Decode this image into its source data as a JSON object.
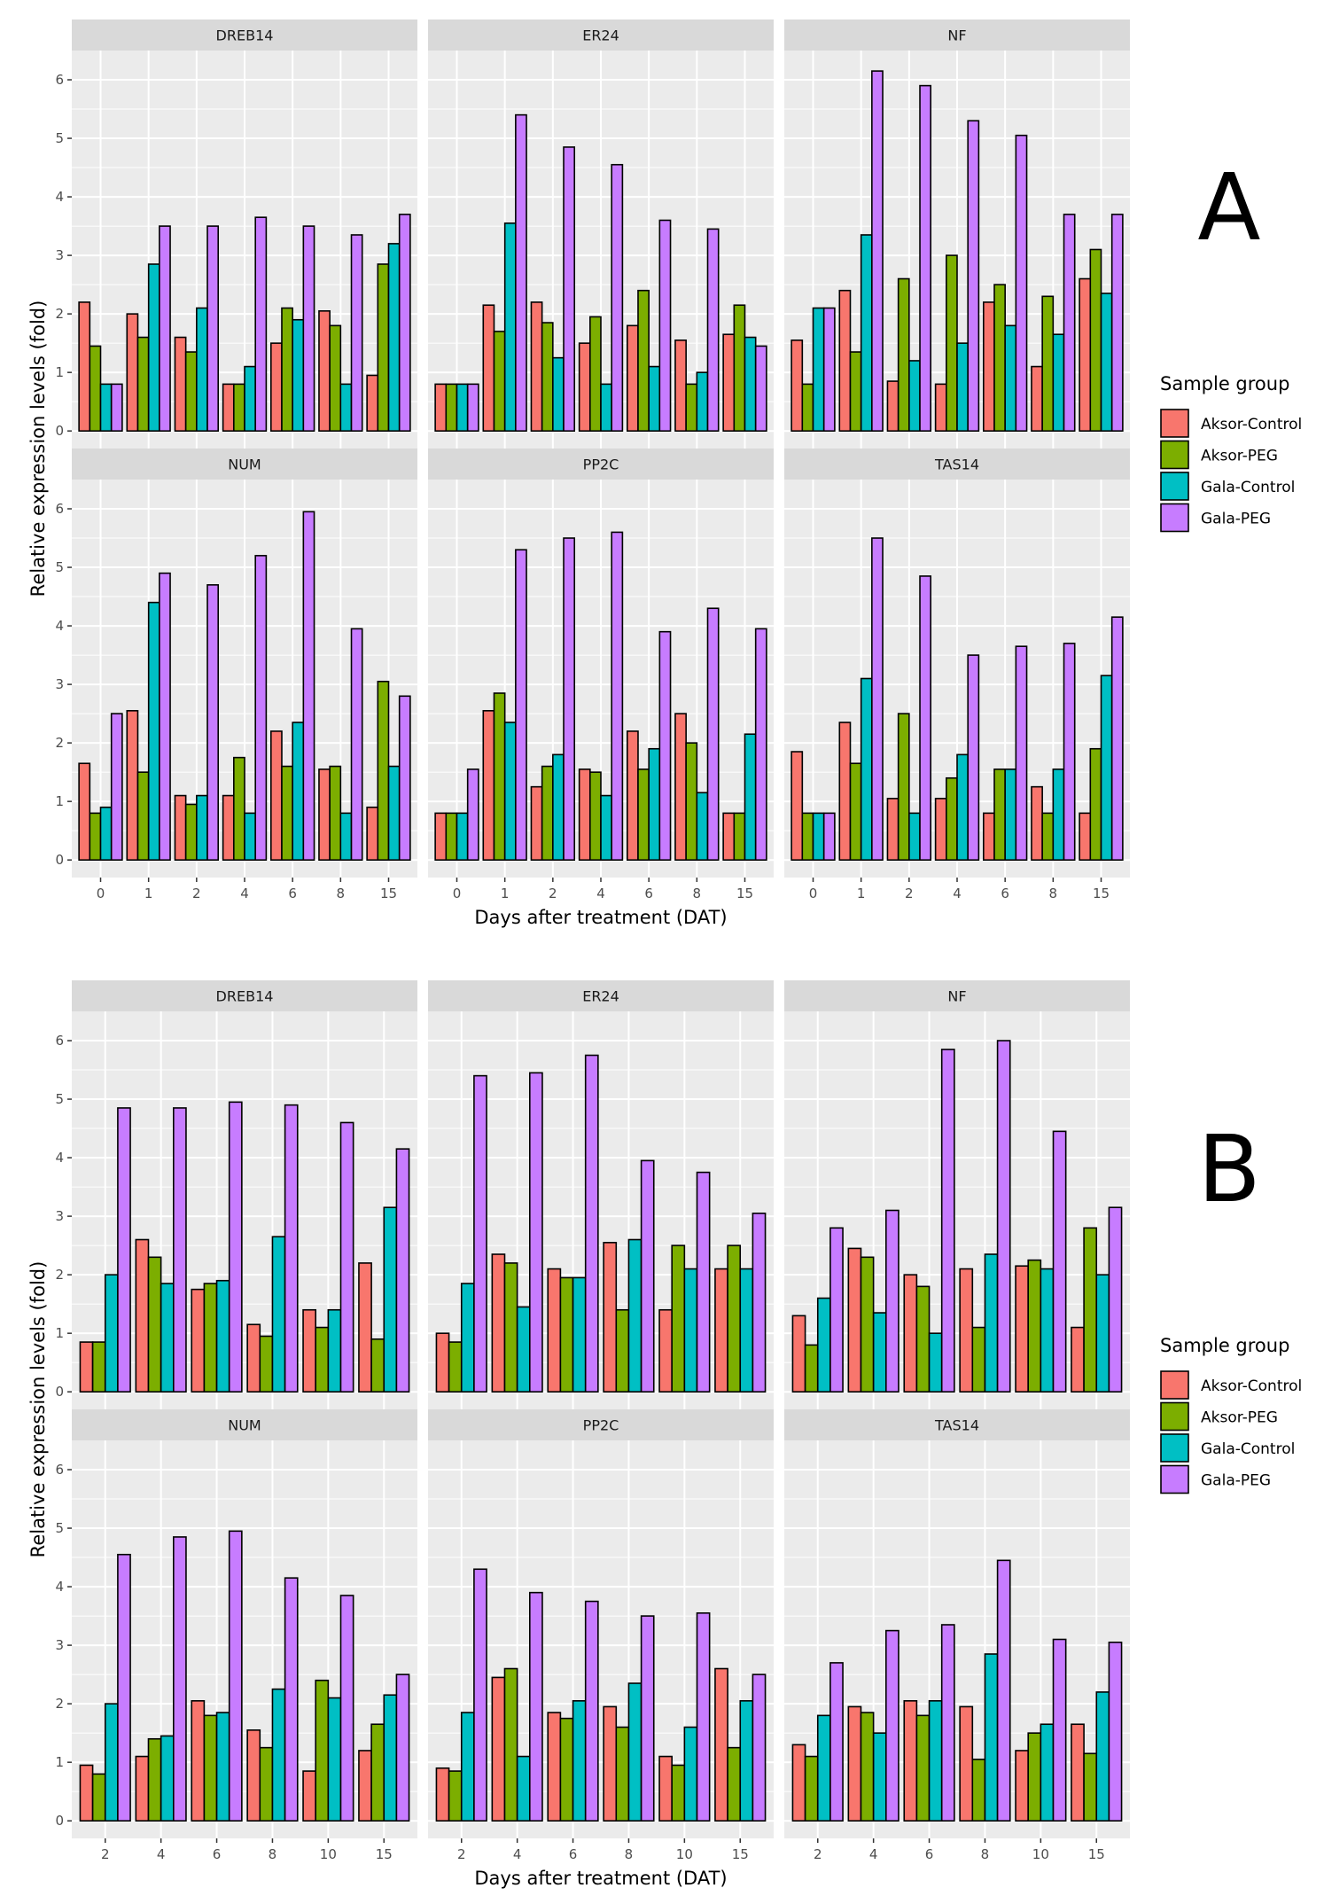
{
  "panel_labels": [
    "A",
    "B"
  ],
  "colors": {
    "Aksor-Control": "#F8766D",
    "Aksor-PEG": "#7CAE00",
    "Gala-Control": "#00BFC4",
    "Gala-PEG": "#C77CFF",
    "panel_bg": "#EBEBEB",
    "strip_bg": "#D9D9D9",
    "grid": "#FFFFFF"
  },
  "chart_data": [
    {
      "type": "bar",
      "label": "A",
      "xlabel": "Days after treatment (DAT)",
      "ylabel": "Relative expression levels (fold)",
      "ylim": [
        -0.3,
        6.5
      ],
      "yticks": [
        0,
        1,
        2,
        3,
        4,
        5,
        6
      ],
      "categories": [
        "0",
        "1",
        "2",
        "4",
        "6",
        "8",
        "15"
      ],
      "legend": {
        "title": "Sample group",
        "position": "right",
        "entries": [
          "Aksor-Control",
          "Aksor-PEG",
          "Gala-Control",
          "Gala-PEG"
        ]
      },
      "facets": [
        {
          "name": "DREB14",
          "series": [
            {
              "name": "Aksor-Control",
              "values": [
                2.2,
                2.0,
                1.6,
                0.8,
                1.5,
                2.05,
                0.95
              ]
            },
            {
              "name": "Aksor-PEG",
              "values": [
                1.45,
                1.6,
                1.35,
                0.8,
                2.1,
                1.8,
                2.85
              ]
            },
            {
              "name": "Gala-Control",
              "values": [
                0.8,
                2.85,
                2.1,
                1.1,
                1.9,
                0.8,
                3.2
              ]
            },
            {
              "name": "Gala-PEG",
              "values": [
                0.8,
                3.5,
                3.5,
                3.65,
                3.5,
                3.35,
                3.7
              ]
            }
          ]
        },
        {
          "name": "ER24",
          "series": [
            {
              "name": "Aksor-Control",
              "values": [
                0.8,
                2.15,
                2.2,
                1.5,
                1.8,
                1.55,
                1.65
              ]
            },
            {
              "name": "Aksor-PEG",
              "values": [
                0.8,
                1.7,
                1.85,
                1.95,
                2.4,
                0.8,
                2.15
              ]
            },
            {
              "name": "Gala-Control",
              "values": [
                0.8,
                3.55,
                1.25,
                0.8,
                1.1,
                1.0,
                1.6
              ]
            },
            {
              "name": "Gala-PEG",
              "values": [
                0.8,
                5.4,
                4.85,
                4.55,
                3.6,
                3.45,
                1.45
              ]
            }
          ]
        },
        {
          "name": "NF",
          "series": [
            {
              "name": "Aksor-Control",
              "values": [
                1.55,
                2.4,
                0.85,
                0.8,
                2.2,
                1.1,
                2.6
              ]
            },
            {
              "name": "Aksor-PEG",
              "values": [
                0.8,
                1.35,
                2.6,
                3.0,
                2.5,
                2.3,
                3.1
              ]
            },
            {
              "name": "Gala-Control",
              "values": [
                2.1,
                3.35,
                1.2,
                1.5,
                1.8,
                1.65,
                2.35
              ]
            },
            {
              "name": "Gala-PEG",
              "values": [
                2.1,
                6.15,
                5.9,
                5.3,
                5.05,
                3.7,
                3.7
              ]
            }
          ]
        },
        {
          "name": "NUM",
          "series": [
            {
              "name": "Aksor-Control",
              "values": [
                1.65,
                2.55,
                1.1,
                1.1,
                2.2,
                1.55,
                0.9
              ]
            },
            {
              "name": "Aksor-PEG",
              "values": [
                0.8,
                1.5,
                0.95,
                1.75,
                1.6,
                1.6,
                3.05
              ]
            },
            {
              "name": "Gala-Control",
              "values": [
                0.9,
                4.4,
                1.1,
                0.8,
                2.35,
                0.8,
                1.6
              ]
            },
            {
              "name": "Gala-PEG",
              "values": [
                2.5,
                4.9,
                4.7,
                5.2,
                5.95,
                3.95,
                2.8
              ]
            }
          ]
        },
        {
          "name": "PP2C",
          "series": [
            {
              "name": "Aksor-Control",
              "values": [
                0.8,
                2.55,
                1.25,
                1.55,
                2.2,
                2.5,
                0.8
              ]
            },
            {
              "name": "Aksor-PEG",
              "values": [
                0.8,
                2.85,
                1.6,
                1.5,
                1.55,
                2.0,
                0.8
              ]
            },
            {
              "name": "Gala-Control",
              "values": [
                0.8,
                2.35,
                1.8,
                1.1,
                1.9,
                1.15,
                2.15
              ]
            },
            {
              "name": "Gala-PEG",
              "values": [
                1.55,
                5.3,
                5.5,
                5.6,
                3.9,
                4.3,
                3.95
              ]
            }
          ]
        },
        {
          "name": "TAS14",
          "series": [
            {
              "name": "Aksor-Control",
              "values": [
                1.85,
                2.35,
                1.05,
                1.05,
                0.8,
                1.25,
                0.8
              ]
            },
            {
              "name": "Aksor-PEG",
              "values": [
                0.8,
                1.65,
                2.5,
                1.4,
                1.55,
                0.8,
                1.9
              ]
            },
            {
              "name": "Gala-Control",
              "values": [
                0.8,
                3.1,
                0.8,
                1.8,
                1.55,
                1.55,
                3.15
              ]
            },
            {
              "name": "Gala-PEG",
              "values": [
                0.8,
                5.5,
                4.85,
                3.5,
                3.65,
                3.7,
                4.15
              ]
            }
          ]
        }
      ]
    },
    {
      "type": "bar",
      "label": "B",
      "xlabel": "Days after treatment (DAT)",
      "ylabel": "Relative expression levels (fold)",
      "ylim": [
        -0.3,
        6.5
      ],
      "yticks": [
        0,
        1,
        2,
        3,
        4,
        5,
        6
      ],
      "categories": [
        "2",
        "4",
        "6",
        "8",
        "10",
        "15"
      ],
      "legend": {
        "title": "Sample group",
        "position": "right",
        "entries": [
          "Aksor-Control",
          "Aksor-PEG",
          "Gala-Control",
          "Gala-PEG"
        ]
      },
      "facets": [
        {
          "name": "DREB14",
          "series": [
            {
              "name": "Aksor-Control",
              "values": [
                0.85,
                2.6,
                1.75,
                1.15,
                1.4,
                2.2
              ]
            },
            {
              "name": "Aksor-PEG",
              "values": [
                0.85,
                2.3,
                1.85,
                0.95,
                1.1,
                0.9
              ]
            },
            {
              "name": "Gala-Control",
              "values": [
                2.0,
                1.85,
                1.9,
                2.65,
                1.4,
                3.15
              ]
            },
            {
              "name": "Gala-PEG",
              "values": [
                4.85,
                4.85,
                4.95,
                4.9,
                4.6,
                4.15
              ]
            }
          ]
        },
        {
          "name": "ER24",
          "series": [
            {
              "name": "Aksor-Control",
              "values": [
                1.0,
                2.35,
                2.1,
                2.55,
                1.4,
                2.1
              ]
            },
            {
              "name": "Aksor-PEG",
              "values": [
                0.85,
                2.2,
                1.95,
                1.4,
                2.5,
                2.5
              ]
            },
            {
              "name": "Gala-Control",
              "values": [
                1.85,
                1.45,
                1.95,
                2.6,
                2.1,
                2.1
              ]
            },
            {
              "name": "Gala-PEG",
              "values": [
                5.4,
                5.45,
                5.75,
                3.95,
                3.75,
                3.05
              ]
            }
          ]
        },
        {
          "name": "NF",
          "series": [
            {
              "name": "Aksor-Control",
              "values": [
                1.3,
                2.45,
                2.0,
                2.1,
                2.15,
                1.1
              ]
            },
            {
              "name": "Aksor-PEG",
              "values": [
                0.8,
                2.3,
                1.8,
                1.1,
                2.25,
                2.8
              ]
            },
            {
              "name": "Gala-Control",
              "values": [
                1.6,
                1.35,
                1.0,
                2.35,
                2.1,
                2.0
              ]
            },
            {
              "name": "Gala-PEG",
              "values": [
                2.8,
                3.1,
                5.85,
                6.0,
                4.45,
                3.15
              ]
            }
          ]
        },
        {
          "name": "NUM",
          "series": [
            {
              "name": "Aksor-Control",
              "values": [
                0.95,
                1.1,
                2.05,
                1.55,
                0.85,
                1.2
              ]
            },
            {
              "name": "Aksor-PEG",
              "values": [
                0.8,
                1.4,
                1.8,
                1.25,
                2.4,
                1.65
              ]
            },
            {
              "name": "Gala-Control",
              "values": [
                2.0,
                1.45,
                1.85,
                2.25,
                2.1,
                2.15
              ]
            },
            {
              "name": "Gala-PEG",
              "values": [
                4.55,
                4.85,
                4.95,
                4.15,
                3.85,
                2.5
              ]
            }
          ]
        },
        {
          "name": "PP2C",
          "series": [
            {
              "name": "Aksor-Control",
              "values": [
                0.9,
                2.45,
                1.85,
                1.95,
                1.1,
                2.6
              ]
            },
            {
              "name": "Aksor-PEG",
              "values": [
                0.85,
                2.6,
                1.75,
                1.6,
                0.95,
                1.25
              ]
            },
            {
              "name": "Gala-Control",
              "values": [
                1.85,
                1.1,
                2.05,
                2.35,
                1.6,
                2.05
              ]
            },
            {
              "name": "Gala-PEG",
              "values": [
                4.3,
                3.9,
                3.75,
                3.5,
                3.55,
                2.5
              ]
            }
          ]
        },
        {
          "name": "TAS14",
          "series": [
            {
              "name": "Aksor-Control",
              "values": [
                1.3,
                1.95,
                2.05,
                1.95,
                1.2,
                1.65
              ]
            },
            {
              "name": "Aksor-PEG",
              "values": [
                1.1,
                1.85,
                1.8,
                1.05,
                1.5,
                1.15
              ]
            },
            {
              "name": "Gala-Control",
              "values": [
                1.8,
                1.5,
                2.05,
                2.85,
                1.65,
                2.2
              ]
            },
            {
              "name": "Gala-PEG",
              "values": [
                2.7,
                3.25,
                3.35,
                4.45,
                3.1,
                3.05
              ]
            }
          ]
        }
      ]
    }
  ]
}
